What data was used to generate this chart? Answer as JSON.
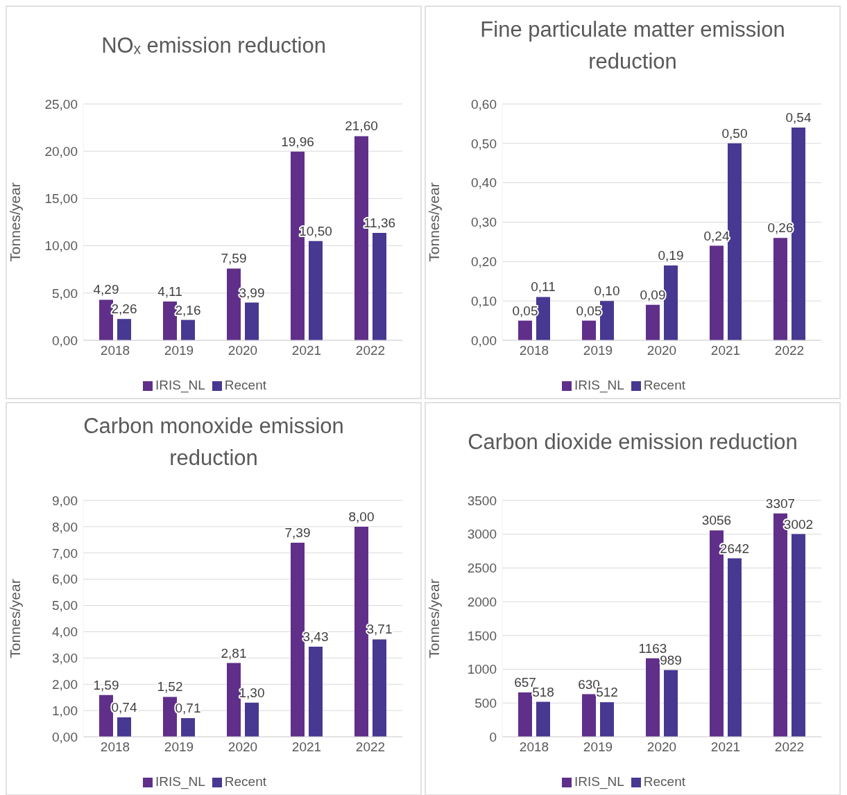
{
  "chart_data": [
    {
      "type": "bar",
      "title": "NOₓ emission reduction",
      "ylabel": "Tonnes/year",
      "categories": [
        "2018",
        "2019",
        "2020",
        "2021",
        "2022"
      ],
      "series": [
        {
          "name": "IRIS_NL",
          "color": "#5f2f8a",
          "values": [
            4.29,
            4.11,
            7.59,
            19.96,
            21.6
          ],
          "value_labels": [
            "4,29",
            "4,11",
            "7,59",
            "19,96",
            "21,60"
          ]
        },
        {
          "name": "Recent",
          "color": "#473892",
          "values": [
            2.26,
            2.16,
            3.99,
            10.5,
            11.36
          ],
          "value_labels": [
            "2,26",
            "2,16",
            "3,99",
            "10,50",
            "11,36"
          ]
        }
      ],
      "ylim": [
        0,
        25
      ],
      "yticks": [
        {
          "value": 0,
          "label": "0,00"
        },
        {
          "value": 5,
          "label": "5,00"
        },
        {
          "value": 10,
          "label": "10,00"
        },
        {
          "value": 15,
          "label": "15,00"
        },
        {
          "value": 20,
          "label": "20,00"
        },
        {
          "value": 25,
          "label": "25,00"
        }
      ],
      "grid": "y",
      "legend": "bottom"
    },
    {
      "type": "bar",
      "title": "Fine particulate matter emission reduction",
      "ylabel": "Tonnes/year",
      "categories": [
        "2018",
        "2019",
        "2020",
        "2021",
        "2022"
      ],
      "series": [
        {
          "name": "IRIS_NL",
          "color": "#5f2f8a",
          "values": [
            0.05,
            0.05,
            0.09,
            0.24,
            0.26
          ],
          "value_labels": [
            "0,05",
            "0,05",
            "0,09",
            "0,24",
            "0,26"
          ]
        },
        {
          "name": "Recent",
          "color": "#473892",
          "values": [
            0.11,
            0.1,
            0.19,
            0.5,
            0.54
          ],
          "value_labels": [
            "0,11",
            "0,10",
            "0,19",
            "0,50",
            "0,54"
          ]
        }
      ],
      "ylim": [
        0,
        0.6
      ],
      "yticks": [
        {
          "value": 0,
          "label": "0,00"
        },
        {
          "value": 0.1,
          "label": "0,10"
        },
        {
          "value": 0.2,
          "label": "0,20"
        },
        {
          "value": 0.3,
          "label": "0,30"
        },
        {
          "value": 0.4,
          "label": "0,40"
        },
        {
          "value": 0.5,
          "label": "0,50"
        },
        {
          "value": 0.6,
          "label": "0,60"
        }
      ],
      "grid": "y",
      "legend": "bottom"
    },
    {
      "type": "bar",
      "title": "Carbon monoxide emission reduction",
      "ylabel": "Tonnes/year",
      "categories": [
        "2018",
        "2019",
        "2020",
        "2021",
        "2022"
      ],
      "series": [
        {
          "name": "IRIS_NL",
          "color": "#5f2f8a",
          "values": [
            1.59,
            1.52,
            2.81,
            7.39,
            8.0
          ],
          "value_labels": [
            "1,59",
            "1,52",
            "2,81",
            "7,39",
            "8,00"
          ]
        },
        {
          "name": "Recent",
          "color": "#473892",
          "values": [
            0.74,
            0.71,
            1.3,
            3.43,
            3.71
          ],
          "value_labels": [
            "0,74",
            "0,71",
            "1,30",
            "3,43",
            "3,71"
          ]
        }
      ],
      "ylim": [
        0,
        9
      ],
      "yticks": [
        {
          "value": 0,
          "label": "0,00"
        },
        {
          "value": 1,
          "label": "1,00"
        },
        {
          "value": 2,
          "label": "2,00"
        },
        {
          "value": 3,
          "label": "3,00"
        },
        {
          "value": 4,
          "label": "4,00"
        },
        {
          "value": 5,
          "label": "5,00"
        },
        {
          "value": 6,
          "label": "6,00"
        },
        {
          "value": 7,
          "label": "7,00"
        },
        {
          "value": 8,
          "label": "8,00"
        },
        {
          "value": 9,
          "label": "9,00"
        }
      ],
      "grid": "y",
      "legend": "bottom"
    },
    {
      "type": "bar",
      "title": "Carbon dioxide emission reduction",
      "ylabel": "Tonnes/year",
      "categories": [
        "2018",
        "2019",
        "2020",
        "2021",
        "2022"
      ],
      "series": [
        {
          "name": "IRIS_NL",
          "color": "#5f2f8a",
          "values": [
            657,
            630,
            1163,
            3056,
            3307
          ],
          "value_labels": [
            "657",
            "630",
            "1163",
            "3056",
            "3307"
          ]
        },
        {
          "name": "Recent",
          "color": "#473892",
          "values": [
            518,
            512,
            989,
            2642,
            3002
          ],
          "value_labels": [
            "518",
            "512",
            "989",
            "2642",
            "3002"
          ]
        }
      ],
      "ylim": [
        0,
        3500
      ],
      "yticks": [
        0,
        500,
        1000,
        1500,
        2000,
        2500,
        3000,
        3500
      ],
      "grid": "y",
      "legend": "bottom"
    }
  ]
}
